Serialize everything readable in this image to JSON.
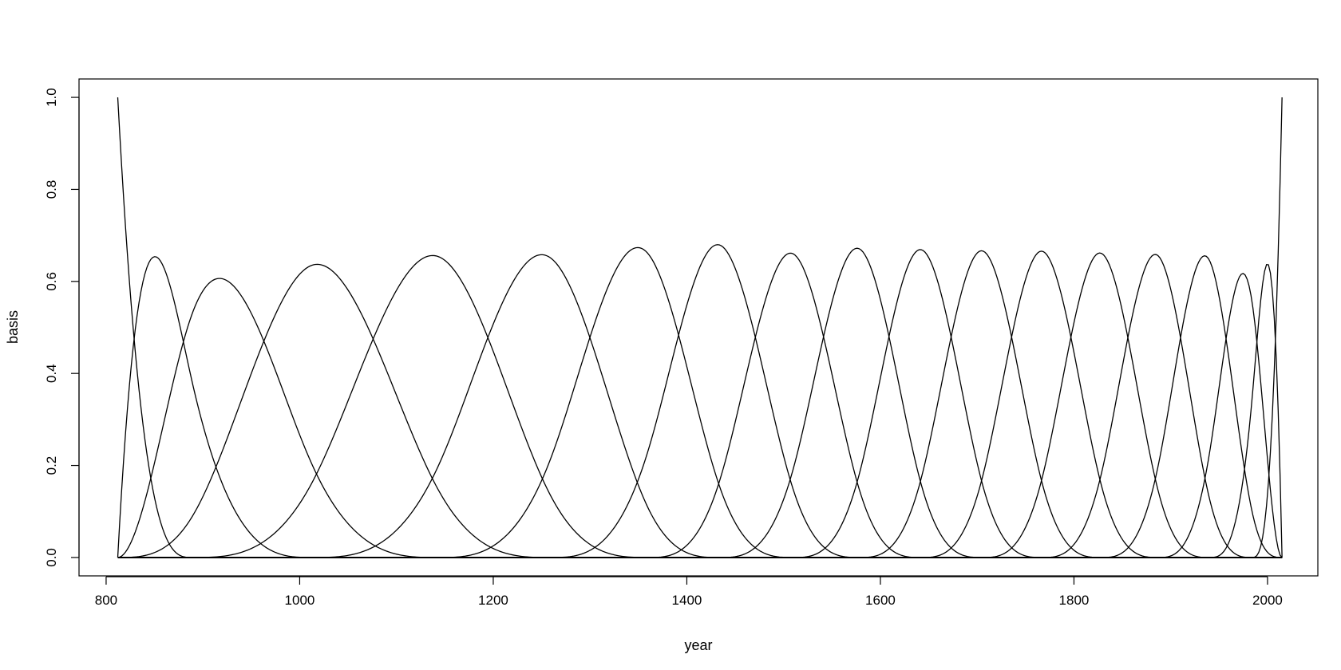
{
  "chart_data": {
    "type": "line",
    "title": "",
    "xlabel": "year",
    "ylabel": "basis",
    "xlim": [
      772,
      2052
    ],
    "ylim": [
      -0.04,
      1.04
    ],
    "x_ticks": [
      800,
      1000,
      1200,
      1400,
      1600,
      1800,
      2000
    ],
    "x_tick_labels": [
      "800",
      "1000",
      "1200",
      "1400",
      "1600",
      "1800",
      "2000"
    ],
    "y_ticks": [
      0.0,
      0.2,
      0.4,
      0.6,
      0.8,
      1.0
    ],
    "y_tick_labels": [
      "0.0",
      "0.2",
      "0.4",
      "0.6",
      "0.8",
      "1.0"
    ],
    "grid": false,
    "legend": "none",
    "line_color": "#000000",
    "spline_degree": 3,
    "x_range": [
      812,
      2015
    ],
    "interior_knots": [
      889,
      1013,
      1143,
      1259,
      1360,
      1434,
      1510,
      1578,
      1642,
      1705,
      1767,
      1828,
      1887,
      1940,
      1984
    ],
    "series_count": 17
  }
}
